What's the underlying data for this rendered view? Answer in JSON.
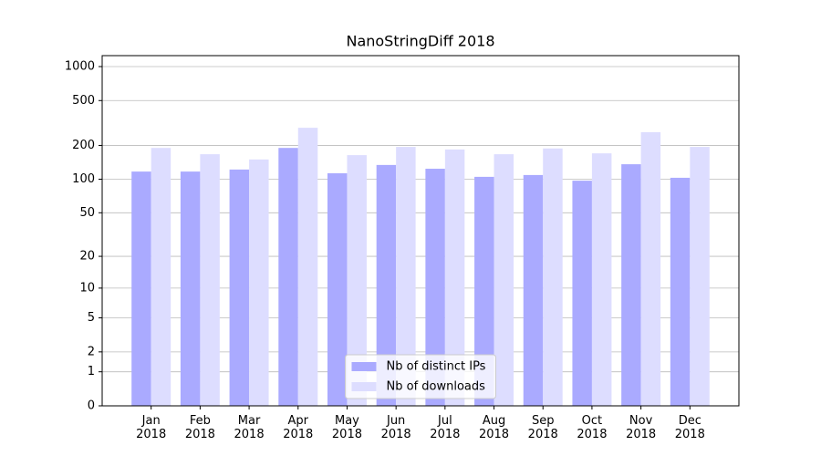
{
  "chart_data": {
    "type": "bar",
    "title": "NanoStringDiff 2018",
    "categories": [
      "Jan\n2018",
      "Feb\n2018",
      "Mar\n2018",
      "Apr\n2018",
      "May\n2018",
      "Jun\n2018",
      "Jul\n2018",
      "Aug\n2018",
      "Sep\n2018",
      "Oct\n2018",
      "Nov\n2018",
      "Dec\n2018"
    ],
    "series": [
      {
        "name": "Nb of distinct IPs",
        "color": "#aaaaff",
        "values": [
          117,
          117,
          122,
          190,
          113,
          134,
          124,
          105,
          109,
          97,
          136,
          103
        ]
      },
      {
        "name": "Nb of downloads",
        "color": "#ddddff",
        "values": [
          190,
          167,
          150,
          287,
          164,
          194,
          184,
          167,
          188,
          170,
          262,
          194
        ]
      }
    ],
    "yscale": "log1p",
    "ylim": [
      0,
      1250
    ],
    "yticks": [
      0,
      1,
      2,
      5,
      10,
      20,
      50,
      100,
      200,
      500,
      1000
    ],
    "grid": true,
    "legend": "lower center"
  }
}
